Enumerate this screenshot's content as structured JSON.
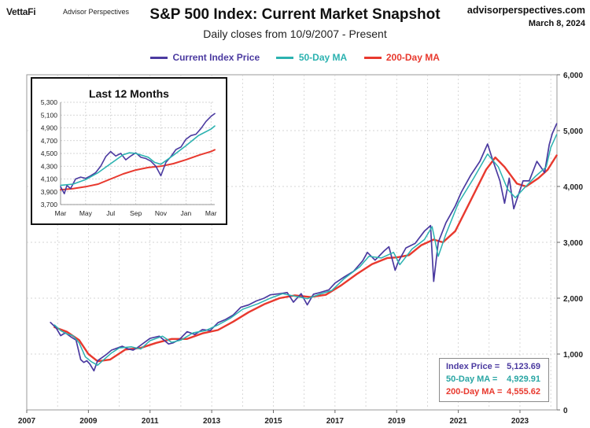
{
  "header": {
    "brand": "VettaFi",
    "brand_sub": "Advisor Perspectives",
    "title": "S&P 500 Index: Current Market Snapshot",
    "subtitle": "Daily closes from 10/9/2007 - Present",
    "source": "advisorperspectives.com",
    "date": "March 8, 2024"
  },
  "colors": {
    "price": "#4b3aa0",
    "ma50": "#2bb2b0",
    "ma200": "#e8392e",
    "grid": "#c8c8c8"
  },
  "stats": {
    "price_label": "Index Price =",
    "price_value": "5,123.69",
    "ma50_label": "50-Day MA =",
    "ma50_value": "4,929.91",
    "ma200_label": "200-Day MA =",
    "ma200_value": "4,555.62"
  },
  "chart_data": [
    {
      "type": "line",
      "title": "S&P 500 Index: Current Market Snapshot",
      "subtitle": "Daily closes from 10/9/2007 - Present",
      "y_axis_side": "right",
      "ylim": [
        0,
        6000
      ],
      "yticks": [
        0,
        1000,
        2000,
        3000,
        4000,
        5000,
        6000
      ],
      "ytick_labels": [
        "0",
        "1,000",
        "2,000",
        "3,000",
        "4,000",
        "5,000",
        "6,000"
      ],
      "xlim": [
        2007.0,
        2024.2
      ],
      "xticks": [
        2007,
        2009,
        2011,
        2013,
        2015,
        2017,
        2019,
        2021,
        2023
      ],
      "xtick_labels": [
        "2007",
        "2009",
        "2011",
        "2013",
        "2015",
        "2017",
        "2019",
        "2021",
        "2023"
      ],
      "grid": true,
      "legend": "top-center",
      "series": [
        {
          "name": "Current Index Price",
          "x": [
            2007.77,
            2007.95,
            2008.1,
            2008.25,
            2008.45,
            2008.6,
            2008.75,
            2008.85,
            2008.95,
            2009.05,
            2009.18,
            2009.3,
            2009.45,
            2009.6,
            2009.75,
            2009.9,
            2010.1,
            2010.3,
            2010.45,
            2010.6,
            2010.8,
            2011.0,
            2011.3,
            2011.6,
            2011.75,
            2011.95,
            2012.2,
            2012.45,
            2012.7,
            2012.95,
            2013.2,
            2013.45,
            2013.7,
            2013.95,
            2014.2,
            2014.45,
            2014.7,
            2014.9,
            2015.2,
            2015.45,
            2015.65,
            2015.9,
            2016.1,
            2016.3,
            2016.5,
            2016.8,
            2017.0,
            2017.3,
            2017.6,
            2017.9,
            2018.05,
            2018.3,
            2018.6,
            2018.75,
            2018.95,
            2019.05,
            2019.3,
            2019.6,
            2019.9,
            2020.1,
            2020.2,
            2020.35,
            2020.6,
            2020.9,
            2021.1,
            2021.4,
            2021.7,
            2021.95,
            2022.1,
            2022.35,
            2022.5,
            2022.65,
            2022.8,
            2022.95,
            2023.1,
            2023.3,
            2023.55,
            2023.8,
            2023.95,
            2024.05,
            2024.19
          ],
          "y": [
            1565,
            1470,
            1330,
            1380,
            1300,
            1250,
            900,
            850,
            880,
            820,
            700,
            880,
            940,
            1000,
            1070,
            1100,
            1140,
            1090,
            1070,
            1120,
            1200,
            1280,
            1320,
            1180,
            1200,
            1260,
            1400,
            1350,
            1440,
            1420,
            1560,
            1620,
            1700,
            1840,
            1880,
            1950,
            2000,
            2060,
            2080,
            2100,
            1930,
            2080,
            1880,
            2070,
            2100,
            2150,
            2270,
            2380,
            2480,
            2670,
            2820,
            2680,
            2850,
            2920,
            2500,
            2650,
            2900,
            2980,
            3200,
            3300,
            2300,
            3000,
            3350,
            3650,
            3900,
            4200,
            4450,
            4760,
            4500,
            4100,
            3700,
            4150,
            3600,
            3850,
            4100,
            4100,
            4450,
            4250,
            4750,
            4950,
            5123
          ]
        },
        {
          "name": "50-Day MA",
          "x": [
            2007.9,
            2008.1,
            2008.3,
            2008.5,
            2008.7,
            2008.9,
            2009.1,
            2009.3,
            2009.5,
            2009.75,
            2010.0,
            2010.4,
            2010.7,
            2011.0,
            2011.4,
            2011.7,
            2012.0,
            2012.4,
            2012.8,
            2013.2,
            2013.6,
            2014.0,
            2014.5,
            2014.9,
            2015.3,
            2015.75,
            2016.1,
            2016.5,
            2016.9,
            2017.3,
            2017.8,
            2018.1,
            2018.5,
            2018.9,
            2019.1,
            2019.5,
            2019.9,
            2020.15,
            2020.35,
            2020.6,
            2021.0,
            2021.5,
            2021.95,
            2022.3,
            2022.6,
            2022.85,
            2023.1,
            2023.5,
            2023.85,
            2024.0,
            2024.19
          ],
          "y": [
            1520,
            1420,
            1360,
            1330,
            1200,
            950,
            860,
            800,
            900,
            1020,
            1110,
            1130,
            1090,
            1240,
            1320,
            1210,
            1250,
            1380,
            1420,
            1520,
            1640,
            1800,
            1900,
            2000,
            2080,
            2030,
            1990,
            2070,
            2140,
            2350,
            2560,
            2750,
            2720,
            2820,
            2600,
            2880,
            3050,
            3280,
            2750,
            3150,
            3700,
            4150,
            4580,
            4350,
            3950,
            3800,
            3950,
            4180,
            4350,
            4700,
            4930
          ]
        },
        {
          "name": "200-Day MA",
          "x": [
            2007.9,
            2008.3,
            2008.7,
            2009.0,
            2009.3,
            2009.7,
            2010.2,
            2010.7,
            2011.2,
            2011.7,
            2012.2,
            2012.7,
            2013.2,
            2013.7,
            2014.2,
            2014.7,
            2015.2,
            2015.7,
            2016.2,
            2016.7,
            2017.2,
            2017.7,
            2018.2,
            2018.7,
            2019.0,
            2019.4,
            2019.8,
            2020.2,
            2020.5,
            2020.9,
            2021.4,
            2021.9,
            2022.2,
            2022.5,
            2022.9,
            2023.2,
            2023.6,
            2023.9,
            2024.19
          ],
          "y": [
            1480,
            1400,
            1250,
            1000,
            870,
            900,
            1080,
            1110,
            1200,
            1270,
            1270,
            1370,
            1430,
            1580,
            1750,
            1890,
            2000,
            2050,
            2020,
            2060,
            2230,
            2430,
            2610,
            2720,
            2730,
            2770,
            2950,
            3050,
            3000,
            3200,
            3750,
            4300,
            4520,
            4350,
            4050,
            4000,
            4150,
            4300,
            4556
          ]
        }
      ]
    },
    {
      "type": "line",
      "title": "Last 12 Months",
      "ylim": [
        3700,
        5300
      ],
      "yticks": [
        3700,
        3900,
        4100,
        4300,
        4500,
        4700,
        4900,
        5100,
        5300
      ],
      "ytick_labels": [
        "3,700",
        "3,900",
        "4,100",
        "4,300",
        "4,500",
        "4,700",
        "4,900",
        "5,100",
        "5,300"
      ],
      "xlim": [
        0,
        12.3
      ],
      "xticks": [
        0,
        2,
        4,
        6,
        8,
        10,
        12
      ],
      "xtick_labels": [
        "Mar",
        "May",
        "Jul",
        "Sep",
        "Nov",
        "Jan",
        "Mar"
      ],
      "grid": true,
      "series": [
        {
          "name": "Current Index Price",
          "x": [
            0.0,
            0.3,
            0.5,
            0.8,
            1.2,
            1.6,
            2.0,
            2.4,
            2.8,
            3.2,
            3.6,
            4.0,
            4.4,
            4.8,
            5.2,
            5.6,
            6.0,
            6.4,
            6.8,
            7.2,
            7.6,
            8.0,
            8.4,
            8.8,
            9.2,
            9.6,
            10.0,
            10.4,
            10.8,
            11.2,
            11.6,
            12.0,
            12.3
          ],
          "y": [
            3980,
            3870,
            4000,
            3950,
            4100,
            4130,
            4110,
            4150,
            4200,
            4300,
            4450,
            4530,
            4460,
            4500,
            4400,
            4460,
            4510,
            4440,
            4420,
            4380,
            4300,
            4150,
            4360,
            4450,
            4560,
            4600,
            4720,
            4780,
            4800,
            4890,
            5000,
            5080,
            5123
          ]
        },
        {
          "name": "50-Day MA",
          "x": [
            0.0,
            1.0,
            2.0,
            3.0,
            4.0,
            5.0,
            5.5,
            6.0,
            7.0,
            7.5,
            8.0,
            9.0,
            10.0,
            11.0,
            12.0,
            12.3
          ],
          "y": [
            4000,
            4020,
            4090,
            4200,
            4340,
            4480,
            4510,
            4500,
            4440,
            4360,
            4330,
            4470,
            4620,
            4780,
            4880,
            4930
          ]
        },
        {
          "name": "200-Day MA",
          "x": [
            0.0,
            1.0,
            2.0,
            3.0,
            4.0,
            5.0,
            6.0,
            7.0,
            8.0,
            9.0,
            10.0,
            11.0,
            12.0,
            12.3
          ],
          "y": [
            3930,
            3950,
            3980,
            4020,
            4100,
            4180,
            4240,
            4280,
            4300,
            4340,
            4400,
            4470,
            4530,
            4556
          ]
        }
      ]
    }
  ]
}
